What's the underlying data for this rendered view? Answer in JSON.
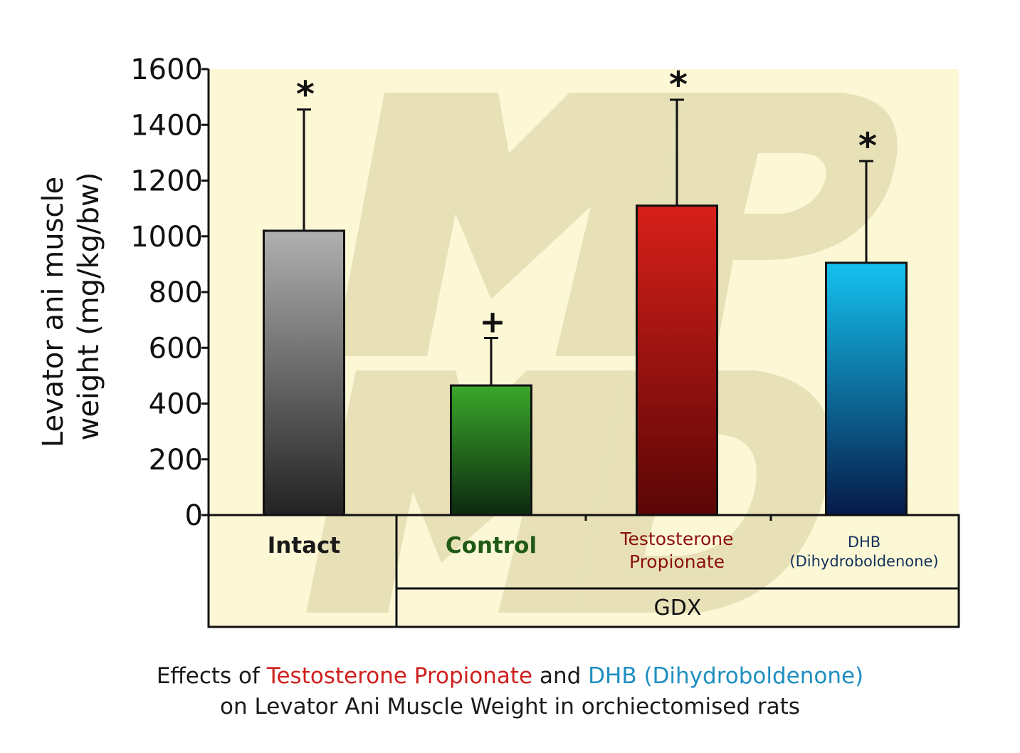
{
  "chart_data": {
    "type": "bar",
    "ylabel_lines": [
      "Levator ani muscle",
      "weight (mg/kg/bw)"
    ],
    "ylim": [
      0,
      1600
    ],
    "yticks": [
      0,
      200,
      400,
      600,
      800,
      1000,
      1200,
      1400,
      1600
    ],
    "categories": [
      "Intact",
      "Control",
      "Testosterone Propionate",
      "DHB (Dihydroboldenone)"
    ],
    "category_label_lines": [
      [
        "Intact"
      ],
      [
        "Control"
      ],
      [
        "Testosterone",
        "Propionate"
      ],
      [
        "DHB",
        "(Dihydroboldenone)"
      ]
    ],
    "group_label": "GDX",
    "values": [
      1020,
      465,
      1110,
      905
    ],
    "error_upper": [
      1455,
      635,
      1490,
      1270
    ],
    "significance": [
      "*",
      "+",
      "*",
      "*"
    ],
    "bar_colors": [
      [
        "#b0b0b0",
        "#222222"
      ],
      [
        "#3aa82a",
        "#0c2a10"
      ],
      [
        "#d8201a",
        "#5a0606"
      ],
      [
        "#14c2f0",
        "#061a48"
      ]
    ],
    "label_colors": [
      "#1a1a1a",
      "#1f5a16",
      "#8a1010",
      "#12305a"
    ],
    "background": "#fcf8d6",
    "watermark": "MP MD"
  },
  "caption": {
    "line1_a": "Effects of ",
    "line1_b": "Testosterone Propionate",
    "line1_c": " and ",
    "line1_d": "DHB (Dihydroboldenone)",
    "line2": "on Levator Ani Muscle Weight in orchiectomised rats"
  }
}
